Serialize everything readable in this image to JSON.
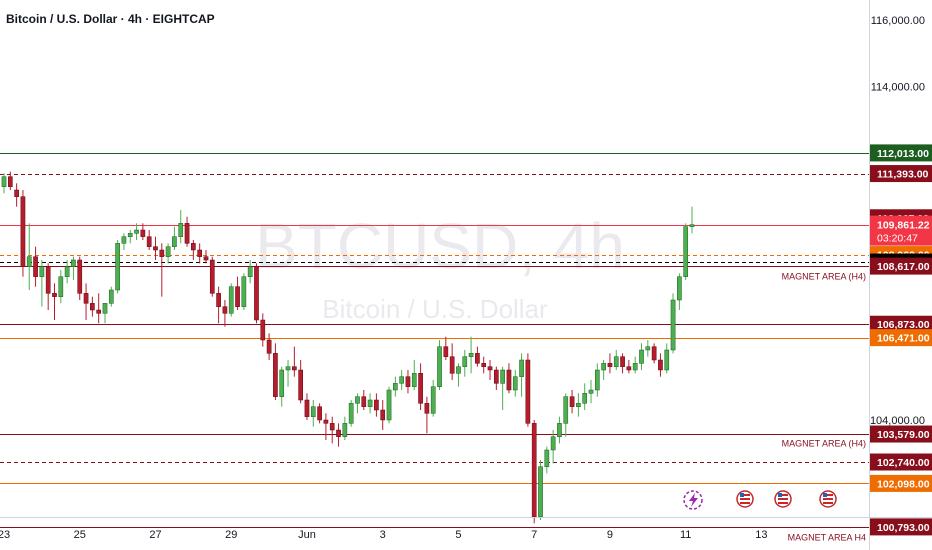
{
  "header": {
    "symbol_title": "Bitcoin / U.S. Dollar · 4h · EIGHTCAP"
  },
  "watermark": {
    "symbol": "BTCUSD, 4h",
    "description": "Bitcoin / U.S. Dollar"
  },
  "colors": {
    "up": "#4caf50",
    "down": "#b71c2c",
    "magnet_line": "#880e1c",
    "orange": "#ef6c00",
    "green_level": "#1b5e20",
    "current_price": "#000000",
    "watermark": "#eaeaee"
  },
  "chart_data": {
    "type": "candlestick",
    "symbol": "BTCUSD",
    "timeframe": "4h",
    "x_ticks": [
      "23",
      "25",
      "27",
      "29",
      "Jun",
      "3",
      "5",
      "7",
      "9",
      "11",
      "13"
    ],
    "y_ticks": [
      "116,000.00",
      "114,000.00",
      "104,000.00"
    ],
    "ylim": [
      100400,
      116300
    ],
    "price_labels": [
      {
        "price": 112013.0,
        "text": "112,013.00",
        "style": "green",
        "line": "solid"
      },
      {
        "price": 111393.0,
        "text": "111,393.00",
        "style": "maroon",
        "line": "dashed"
      },
      {
        "price": 110067.0,
        "text": "110,067.00",
        "style": "maroon",
        "line": "none"
      },
      {
        "price": 109861.22,
        "text": "109,861.22",
        "sub": "03:20:47",
        "style": "red",
        "line": "solid"
      },
      {
        "price": 108963.0,
        "text": "108,963.00",
        "style": "orange",
        "line": "dashed"
      },
      {
        "price": 108738.04,
        "text": "108,738.04",
        "style": "black",
        "line": "dashed"
      },
      {
        "price": 108617.0,
        "text": "108,617.00",
        "style": "maroon",
        "line": "solid"
      },
      {
        "price": 106873.0,
        "text": "106,873.00",
        "style": "maroon",
        "line": "solid"
      },
      {
        "price": 106471.0,
        "text": "106,471.00",
        "style": "orange",
        "line": "solid"
      },
      {
        "price": 103579.0,
        "text": "103,579.00",
        "style": "maroon",
        "line": "solid"
      },
      {
        "price": 102740.0,
        "text": "102,740.00",
        "style": "maroon",
        "line": "dashed"
      },
      {
        "price": 102098.0,
        "text": "102,098.00",
        "style": "orange",
        "line": "solid"
      },
      {
        "price": 100793.0,
        "text": "100,793.00",
        "style": "maroon",
        "line": "solid"
      }
    ],
    "annotations": [
      {
        "text": "MAGNET AREA (H4)",
        "price": 108300
      },
      {
        "text": "MAGNET AREA (H4)",
        "price": 103300
      },
      {
        "text": "MAGNET AREA H4",
        "price": 100480
      }
    ],
    "candles": [
      {
        "o": 111000,
        "h": 111400,
        "l": 110800,
        "c": 111300
      },
      {
        "o": 111300,
        "h": 111450,
        "l": 110900,
        "c": 111000
      },
      {
        "o": 110900,
        "h": 111100,
        "l": 110400,
        "c": 110700
      },
      {
        "o": 110700,
        "h": 110900,
        "l": 108300,
        "c": 108600
      },
      {
        "o": 108600,
        "h": 109900,
        "l": 107900,
        "c": 108900
      },
      {
        "o": 108900,
        "h": 109200,
        "l": 108000,
        "c": 108300
      },
      {
        "o": 108300,
        "h": 108800,
        "l": 107400,
        "c": 108600
      },
      {
        "o": 108600,
        "h": 108700,
        "l": 107300,
        "c": 107800
      },
      {
        "o": 107800,
        "h": 108100,
        "l": 107000,
        "c": 107700
      },
      {
        "o": 107700,
        "h": 108500,
        "l": 107500,
        "c": 108300
      },
      {
        "o": 108300,
        "h": 108800,
        "l": 108100,
        "c": 108600
      },
      {
        "o": 108600,
        "h": 108900,
        "l": 108200,
        "c": 108800
      },
      {
        "o": 108800,
        "h": 108900,
        "l": 107600,
        "c": 107800
      },
      {
        "o": 107800,
        "h": 108100,
        "l": 107000,
        "c": 107500
      },
      {
        "o": 107500,
        "h": 107700,
        "l": 107100,
        "c": 107300
      },
      {
        "o": 107300,
        "h": 107800,
        "l": 106900,
        "c": 107200
      },
      {
        "o": 107200,
        "h": 107500,
        "l": 106900,
        "c": 107500
      },
      {
        "o": 107500,
        "h": 108000,
        "l": 107400,
        "c": 107900
      },
      {
        "o": 107900,
        "h": 109400,
        "l": 107800,
        "c": 109300
      },
      {
        "o": 109300,
        "h": 109600,
        "l": 109100,
        "c": 109500
      },
      {
        "o": 109500,
        "h": 109700,
        "l": 109300,
        "c": 109600
      },
      {
        "o": 109600,
        "h": 109900,
        "l": 109400,
        "c": 109700
      },
      {
        "o": 109700,
        "h": 109900,
        "l": 109400,
        "c": 109500
      },
      {
        "o": 109500,
        "h": 109700,
        "l": 109100,
        "c": 109200
      },
      {
        "o": 109200,
        "h": 109500,
        "l": 108800,
        "c": 109100
      },
      {
        "o": 109100,
        "h": 109300,
        "l": 107700,
        "c": 108900
      },
      {
        "o": 108900,
        "h": 109300,
        "l": 108700,
        "c": 109200
      },
      {
        "o": 109200,
        "h": 109800,
        "l": 109100,
        "c": 109500
      },
      {
        "o": 109500,
        "h": 110300,
        "l": 109300,
        "c": 109900
      },
      {
        "o": 109900,
        "h": 110100,
        "l": 109200,
        "c": 109300
      },
      {
        "o": 109300,
        "h": 109400,
        "l": 108800,
        "c": 109100
      },
      {
        "o": 109100,
        "h": 109300,
        "l": 108700,
        "c": 108900
      },
      {
        "o": 108900,
        "h": 109100,
        "l": 108700,
        "c": 108800
      },
      {
        "o": 108800,
        "h": 108900,
        "l": 107700,
        "c": 107800
      },
      {
        "o": 107800,
        "h": 108000,
        "l": 106900,
        "c": 107400
      },
      {
        "o": 107400,
        "h": 107600,
        "l": 106800,
        "c": 107200
      },
      {
        "o": 107200,
        "h": 108100,
        "l": 107100,
        "c": 108000
      },
      {
        "o": 108000,
        "h": 108300,
        "l": 107300,
        "c": 107400
      },
      {
        "o": 107400,
        "h": 108400,
        "l": 107300,
        "c": 108300
      },
      {
        "o": 108300,
        "h": 108800,
        "l": 108100,
        "c": 108600
      },
      {
        "o": 108600,
        "h": 108700,
        "l": 106900,
        "c": 107000
      },
      {
        "o": 107000,
        "h": 107200,
        "l": 106200,
        "c": 106400
      },
      {
        "o": 106400,
        "h": 106600,
        "l": 105800,
        "c": 106000
      },
      {
        "o": 106000,
        "h": 106300,
        "l": 104600,
        "c": 104700
      },
      {
        "o": 104700,
        "h": 105600,
        "l": 104400,
        "c": 105500
      },
      {
        "o": 105500,
        "h": 105800,
        "l": 105000,
        "c": 105600
      },
      {
        "o": 105600,
        "h": 106200,
        "l": 105300,
        "c": 105500
      },
      {
        "o": 105500,
        "h": 105800,
        "l": 104500,
        "c": 104600
      },
      {
        "o": 104600,
        "h": 104800,
        "l": 104000,
        "c": 104100
      },
      {
        "o": 104100,
        "h": 104600,
        "l": 103800,
        "c": 104400
      },
      {
        "o": 104400,
        "h": 104500,
        "l": 103900,
        "c": 104000
      },
      {
        "o": 104000,
        "h": 104200,
        "l": 103400,
        "c": 103900
      },
      {
        "o": 103900,
        "h": 104100,
        "l": 103300,
        "c": 103700
      },
      {
        "o": 103700,
        "h": 103900,
        "l": 103200,
        "c": 103500
      },
      {
        "o": 103500,
        "h": 104100,
        "l": 103400,
        "c": 103900
      },
      {
        "o": 103900,
        "h": 104600,
        "l": 103800,
        "c": 104500
      },
      {
        "o": 104500,
        "h": 104800,
        "l": 104200,
        "c": 104700
      },
      {
        "o": 104700,
        "h": 104900,
        "l": 104300,
        "c": 104400
      },
      {
        "o": 104400,
        "h": 104800,
        "l": 104200,
        "c": 104600
      },
      {
        "o": 104600,
        "h": 104800,
        "l": 104100,
        "c": 104300
      },
      {
        "o": 104300,
        "h": 104600,
        "l": 103700,
        "c": 104000
      },
      {
        "o": 104000,
        "h": 105000,
        "l": 103900,
        "c": 104900
      },
      {
        "o": 104900,
        "h": 105300,
        "l": 104700,
        "c": 105100
      },
      {
        "o": 105100,
        "h": 105500,
        "l": 104900,
        "c": 105300
      },
      {
        "o": 105300,
        "h": 105500,
        "l": 104800,
        "c": 105000
      },
      {
        "o": 105000,
        "h": 105800,
        "l": 104900,
        "c": 105400
      },
      {
        "o": 105400,
        "h": 105700,
        "l": 104300,
        "c": 104500
      },
      {
        "o": 104500,
        "h": 104700,
        "l": 103600,
        "c": 104200
      },
      {
        "o": 104200,
        "h": 105200,
        "l": 104100,
        "c": 105000
      },
      {
        "o": 105000,
        "h": 106400,
        "l": 104900,
        "c": 106200
      },
      {
        "o": 106200,
        "h": 106500,
        "l": 105800,
        "c": 105900
      },
      {
        "o": 105900,
        "h": 106300,
        "l": 105200,
        "c": 105400
      },
      {
        "o": 105400,
        "h": 105700,
        "l": 105000,
        "c": 105600
      },
      {
        "o": 105600,
        "h": 106100,
        "l": 105300,
        "c": 105900
      },
      {
        "o": 105900,
        "h": 106500,
        "l": 105400,
        "c": 106000
      },
      {
        "o": 106000,
        "h": 106200,
        "l": 105600,
        "c": 105700
      },
      {
        "o": 105700,
        "h": 105900,
        "l": 105400,
        "c": 105600
      },
      {
        "o": 105600,
        "h": 105800,
        "l": 105200,
        "c": 105500
      },
      {
        "o": 105500,
        "h": 105600,
        "l": 104900,
        "c": 105100
      },
      {
        "o": 105100,
        "h": 105600,
        "l": 104300,
        "c": 105500
      },
      {
        "o": 105500,
        "h": 105700,
        "l": 104800,
        "c": 104900
      },
      {
        "o": 104900,
        "h": 105500,
        "l": 104700,
        "c": 105300
      },
      {
        "o": 105300,
        "h": 106000,
        "l": 104700,
        "c": 105800
      },
      {
        "o": 105800,
        "h": 106000,
        "l": 103800,
        "c": 103900
      },
      {
        "o": 103900,
        "h": 104000,
        "l": 100900,
        "c": 101100
      },
      {
        "o": 101100,
        "h": 102800,
        "l": 101000,
        "c": 102600
      },
      {
        "o": 102600,
        "h": 103200,
        "l": 102400,
        "c": 103100
      },
      {
        "o": 103100,
        "h": 103700,
        "l": 102700,
        "c": 103500
      },
      {
        "o": 103500,
        "h": 104100,
        "l": 103300,
        "c": 103900
      },
      {
        "o": 103900,
        "h": 104800,
        "l": 103500,
        "c": 104700
      },
      {
        "o": 104700,
        "h": 104900,
        "l": 104200,
        "c": 104400
      },
      {
        "o": 104400,
        "h": 104800,
        "l": 104100,
        "c": 104500
      },
      {
        "o": 104500,
        "h": 105100,
        "l": 104300,
        "c": 104800
      },
      {
        "o": 104800,
        "h": 105200,
        "l": 104500,
        "c": 104900
      },
      {
        "o": 104900,
        "h": 105700,
        "l": 104700,
        "c": 105500
      },
      {
        "o": 105500,
        "h": 105800,
        "l": 105200,
        "c": 105700
      },
      {
        "o": 105700,
        "h": 106000,
        "l": 105400,
        "c": 105600
      },
      {
        "o": 105600,
        "h": 106100,
        "l": 105500,
        "c": 105900
      },
      {
        "o": 105900,
        "h": 106000,
        "l": 105400,
        "c": 105600
      },
      {
        "o": 105600,
        "h": 105800,
        "l": 105400,
        "c": 105500
      },
      {
        "o": 105500,
        "h": 105900,
        "l": 105400,
        "c": 105700
      },
      {
        "o": 105700,
        "h": 106300,
        "l": 105500,
        "c": 106100
      },
      {
        "o": 106100,
        "h": 106400,
        "l": 105900,
        "c": 106200
      },
      {
        "o": 106200,
        "h": 106300,
        "l": 105700,
        "c": 105800
      },
      {
        "o": 105800,
        "h": 106000,
        "l": 105300,
        "c": 105500
      },
      {
        "o": 105500,
        "h": 106300,
        "l": 105400,
        "c": 106100
      },
      {
        "o": 106100,
        "h": 107800,
        "l": 106000,
        "c": 107600
      },
      {
        "o": 107600,
        "h": 108400,
        "l": 107300,
        "c": 108300
      },
      {
        "o": 108300,
        "h": 109900,
        "l": 108200,
        "c": 109800
      },
      {
        "o": 109800,
        "h": 110400,
        "l": 109600,
        "c": 109861.22
      }
    ]
  }
}
